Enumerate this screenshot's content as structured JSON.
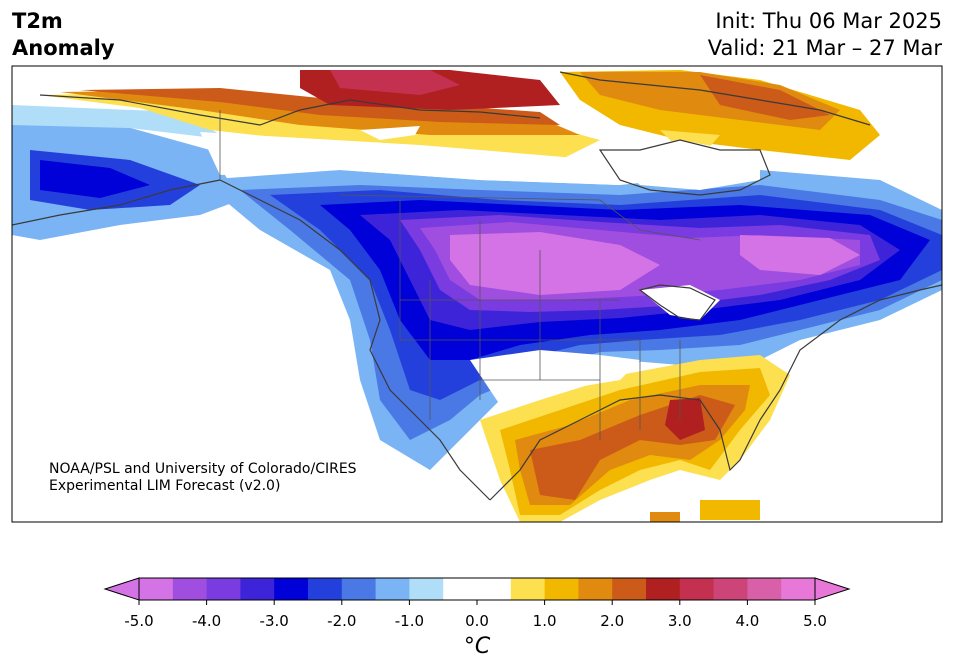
{
  "title": {
    "line1": "T2m",
    "line2": "Anomaly"
  },
  "dates": {
    "init": "Init: Thu 06 Mar 2025",
    "valid": "Valid: 21 Mar – 27 Mar"
  },
  "credit": {
    "line1": "NOAA/PSL and University of Colorado/CIRES",
    "line2": "Experimental LIM Forecast (v2.0)"
  },
  "colorbar": {
    "unit_label": "°C",
    "tick_labels": [
      "-5.0",
      "-4.0",
      "-3.0",
      "-2.0",
      "-1.0",
      "0.0",
      "1.0",
      "2.0",
      "3.0",
      "4.0",
      "5.0"
    ],
    "colors": [
      "#d473e6",
      "#a04ee0",
      "#7a3be0",
      "#3d24d8",
      "#0000d8",
      "#2440dc",
      "#4a78e4",
      "#7ab4f4",
      "#b0def8",
      "#ffffff",
      "#ffffff",
      "#fce050",
      "#f2b800",
      "#e08a10",
      "#cc5a18",
      "#b02020",
      "#c43050",
      "#cc4478",
      "#d860a8",
      "#e878d8"
    ],
    "under_color": "#d473e6",
    "over_color": "#e878d8"
  },
  "colors": {
    "very_cold": "#d473e6",
    "cold_purple": "#a04ee0",
    "cold_blue": "#0000d8",
    "cool_blue": "#4a78e4",
    "light_blue": "#b0def8",
    "neutral": "#ffffff",
    "warm_yellow": "#fce050",
    "warm_orange": "#e08a10",
    "hot_red": "#b02020"
  }
}
